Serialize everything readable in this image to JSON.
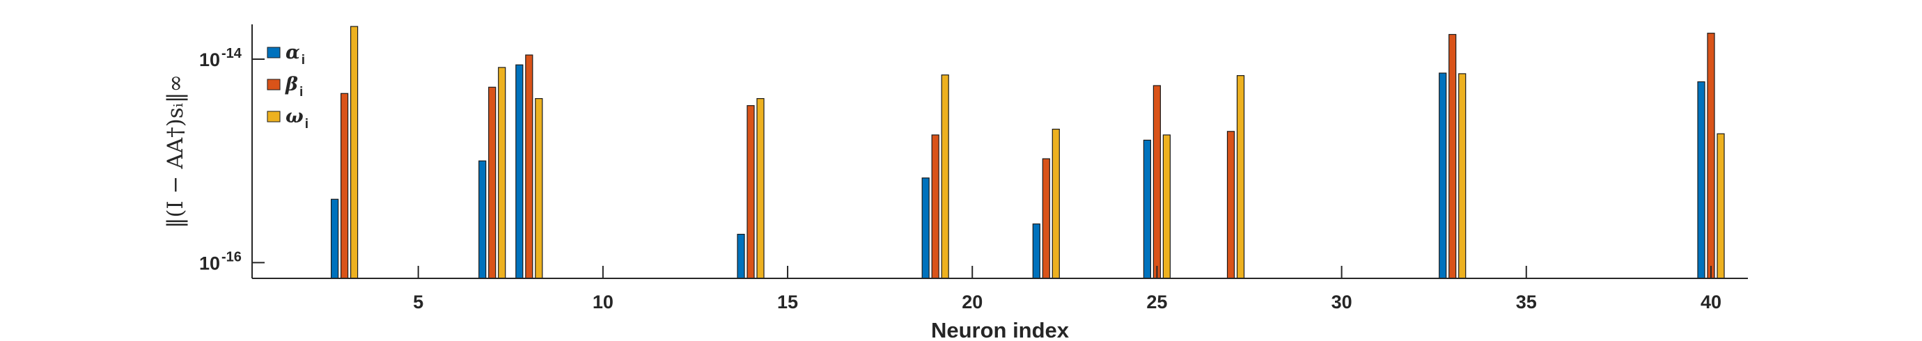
{
  "chart_data": {
    "type": "bar",
    "x": [
      3,
      7,
      8,
      14,
      19,
      22,
      25,
      27,
      33,
      40
    ],
    "series": [
      {
        "name": "α",
        "subscript": "i",
        "color": "#0072BD",
        "values": [
          4.2e-16,
          1e-15,
          8.8e-15,
          1.9e-16,
          6.8e-16,
          2.4e-16,
          1.6e-15,
          null,
          7.3e-15,
          6e-15
        ]
      },
      {
        "name": "β",
        "subscript": "i",
        "color": "#D95319",
        "values": [
          4.6e-15,
          5.3e-15,
          1.1e-14,
          3.5e-15,
          1.8e-15,
          1.05e-15,
          5.5e-15,
          1.95e-15,
          1.75e-14,
          1.8e-14
        ]
      },
      {
        "name": "ω",
        "subscript": "i",
        "color": "#EDB120",
        "values": [
          2.1e-14,
          8.3e-15,
          4.1e-15,
          4.1e-15,
          7e-15,
          2.05e-15,
          1.8e-15,
          6.9e-15,
          7.2e-15,
          1.85e-15
        ]
      }
    ],
    "xlabel": "Neuron index",
    "ylabel": "‖(I − AA†)sᵢ‖∞",
    "xticks": [
      "5",
      "10",
      "15",
      "20",
      "25",
      "30",
      "35",
      "40"
    ],
    "xlim": [
      0.5,
      41
    ],
    "ylim": [
      7e-17,
      2.2e-14
    ],
    "yscale": "log",
    "yticks": [
      {
        "base": "10",
        "exp": "-16",
        "value": 1e-16
      },
      {
        "base": "10",
        "exp": "-14",
        "value": 1e-14
      }
    ],
    "legend": "top-left",
    "grid": false
  }
}
